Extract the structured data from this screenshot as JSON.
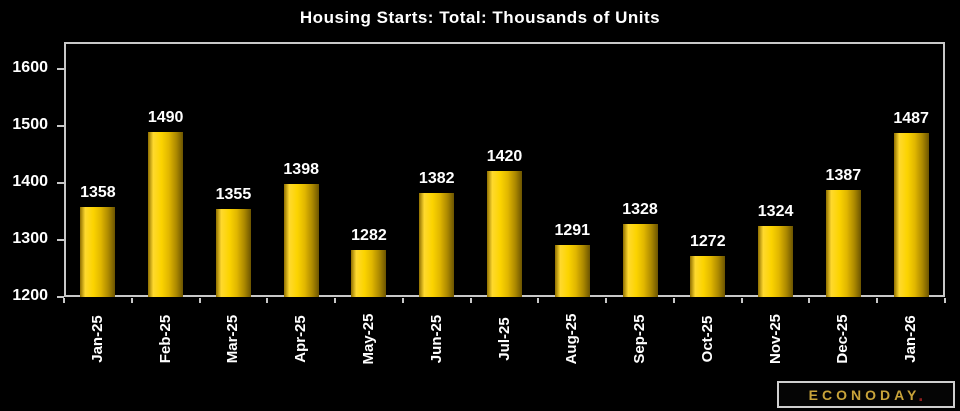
{
  "chart_data": {
    "type": "bar",
    "title": "Housing Starts: Total: Thousands of Units",
    "categories": [
      "Jan-25",
      "Feb-25",
      "Mar-25",
      "Apr-25",
      "May-25",
      "Jun-25",
      "Jul-25",
      "Aug-25",
      "Sep-25",
      "Oct-25",
      "Nov-25",
      "Dec-25",
      "Jan-26"
    ],
    "values": [
      1358,
      1490,
      1355,
      1398,
      1282,
      1382,
      1420,
      1291,
      1328,
      1272,
      1324,
      1387,
      1487
    ],
    "xlabel": "",
    "ylabel": "",
    "ylim": [
      1200,
      1647
    ],
    "yticks": [
      1200,
      1300,
      1400,
      1500,
      1600
    ],
    "grid": false,
    "legend": false,
    "value_labels": true
  },
  "colors": {
    "background": "#000000",
    "axis": "#c8c8c8",
    "text": "#ffffff",
    "bar_gradient": [
      "#8f6f00 0%",
      "#ffd92e 15%",
      "#fcd400 38%",
      "#e0b600 60%",
      "#a98600 82%",
      "#6b5400 100%"
    ]
  },
  "branding": {
    "logo_text": "ECONODAY",
    "logo_dot": ".",
    "logo_text_color": "#c9a43a",
    "logo_dot_color": "#8f1d1d"
  }
}
